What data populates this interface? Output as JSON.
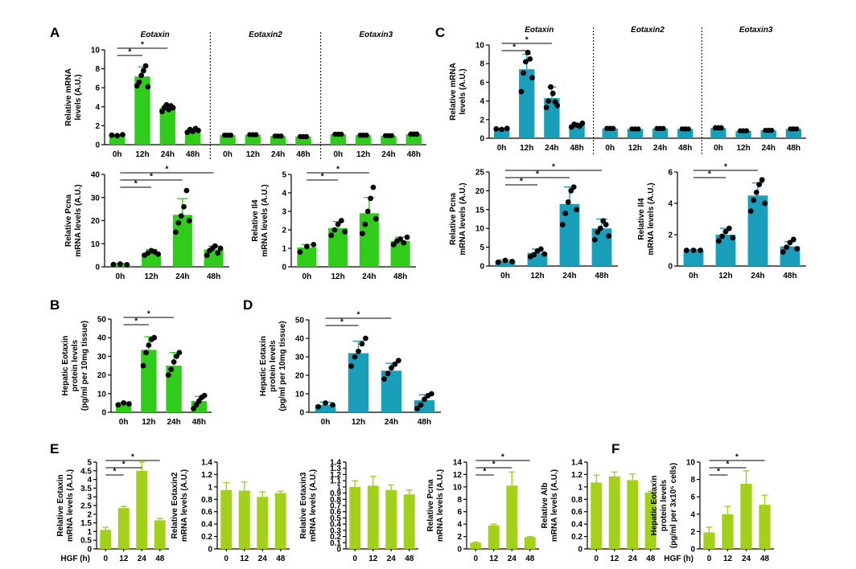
{
  "colors": {
    "green": "#2fcc1a",
    "teal": "#1a9fbb",
    "lime": "#a3d11a",
    "ink": "#000000"
  },
  "labels": {
    "A": "A",
    "B": "B",
    "C": "C",
    "D": "D",
    "E": "E",
    "F": "F"
  },
  "chart_data": [
    {
      "id": "A1",
      "panel": "A",
      "type": "bar",
      "color": "green",
      "ylabel": [
        "Relative mRNA",
        "levels (A.U.)"
      ],
      "ylim": [
        0,
        10
      ],
      "yticks": [
        0,
        2,
        4,
        6,
        8,
        10
      ],
      "groups": [
        {
          "title": "Eotaxin",
          "categories": [
            "0h",
            "12h",
            "24h",
            "48h"
          ],
          "values": [
            1.0,
            7.2,
            3.9,
            1.5
          ],
          "err": [
            0.05,
            1.0,
            0.3,
            0.2
          ]
        },
        {
          "title": "Eotaxin2",
          "categories": [
            "0h",
            "12h",
            "24h",
            "48h"
          ],
          "values": [
            1.0,
            1.05,
            0.9,
            0.85
          ],
          "err": [
            0.08,
            0.1,
            0.08,
            0.06
          ]
        },
        {
          "title": "Eotaxin3",
          "categories": [
            "0h",
            "12h",
            "24h",
            "48h"
          ],
          "values": [
            1.1,
            1.0,
            0.95,
            1.1
          ],
          "err": [
            0.2,
            0.15,
            0.1,
            0.25
          ]
        }
      ],
      "points": [
        [
          1,
          0.95,
          1.05
        ],
        [
          6.2,
          6.6,
          7.3,
          7.8,
          8.3,
          6.1
        ],
        [
          3.5,
          3.9,
          4.2,
          3.7,
          4.1,
          3.9
        ],
        [
          1.3,
          1.6,
          1.4,
          1.7,
          1.5
        ]
      ],
      "sig": [
        {
          "from": 0,
          "to": 1,
          "label": "*"
        },
        {
          "from": 0,
          "to": 2,
          "label": "*"
        }
      ]
    },
    {
      "id": "A2",
      "panel": "A",
      "type": "bar",
      "color": "green",
      "ylabel": [
        "Relative Pcna",
        "mRNA levels (A.U.)"
      ],
      "ylim": [
        0,
        40
      ],
      "yticks": [
        0,
        10,
        20,
        30,
        40
      ],
      "categories": [
        "0h",
        "12h",
        "24h",
        "48h"
      ],
      "values": [
        1.2,
        6.0,
        22.5,
        7.5
      ],
      "err": [
        0.3,
        1.5,
        7.0,
        1.5
      ],
      "points": [
        [
          1,
          1.2,
          0.9
        ],
        [
          5,
          6,
          7,
          6.5,
          5.5
        ],
        [
          15,
          19,
          22,
          26,
          33,
          20
        ],
        [
          5,
          7,
          8,
          9,
          6,
          8
        ]
      ],
      "sig": [
        {
          "from": 0,
          "to": 1,
          "label": "*"
        },
        {
          "from": 0,
          "to": 2,
          "label": "*"
        },
        {
          "from": 0,
          "to": 3,
          "label": "*"
        }
      ]
    },
    {
      "id": "A3",
      "panel": "A",
      "type": "bar",
      "color": "green",
      "ylabel": [
        "Relative Il4",
        "mRNA levels (A.U.)"
      ],
      "ylim": [
        0,
        5
      ],
      "yticks": [
        0,
        1,
        2,
        3,
        4,
        5
      ],
      "categories": [
        "0h",
        "12h",
        "24h",
        "48h"
      ],
      "values": [
        1.05,
        2.1,
        2.9,
        1.4
      ],
      "err": [
        0.15,
        0.35,
        0.85,
        0.2
      ],
      "points": [
        [
          0.8,
          1.1,
          1.2
        ],
        [
          1.7,
          2.0,
          2.3,
          2.5,
          1.9
        ],
        [
          1.8,
          2.3,
          3.0,
          3.7,
          4.3,
          2.6
        ],
        [
          1.2,
          1.4,
          1.5,
          1.3,
          1.6
        ]
      ],
      "sig": [
        {
          "from": 0,
          "to": 1,
          "label": "*"
        },
        {
          "from": 0,
          "to": 2,
          "label": "*"
        }
      ]
    },
    {
      "id": "B",
      "panel": "B",
      "type": "bar",
      "color": "green",
      "ylabel": [
        "Hepatic Eotaxin",
        "protein levels",
        "(pg/ml per 10mg tissue)"
      ],
      "ylim": [
        0,
        50
      ],
      "yticks": [
        0,
        10,
        20,
        30,
        40,
        50
      ],
      "categories": [
        "0h",
        "12h",
        "24h",
        "48h"
      ],
      "values": [
        4.5,
        33.5,
        25.0,
        6.0
      ],
      "err": [
        0.8,
        7.0,
        7.0,
        2.5
      ],
      "points": [
        [
          4,
          5,
          4.5
        ],
        [
          25,
          32,
          36,
          39,
          40
        ],
        [
          20,
          23,
          27,
          30,
          32
        ],
        [
          2,
          4,
          6,
          8,
          9
        ]
      ],
      "sig": [
        {
          "from": 0,
          "to": 1,
          "label": "*"
        },
        {
          "from": 0,
          "to": 2,
          "label": "*"
        }
      ]
    },
    {
      "id": "C1",
      "panel": "C",
      "type": "bar",
      "color": "teal",
      "ylabel": [
        "Relative mRNA",
        "levels (A.U.)"
      ],
      "ylim": [
        0,
        10
      ],
      "yticks": [
        0,
        2,
        4,
        6,
        8,
        10
      ],
      "groups": [
        {
          "title": "Eotaxin",
          "categories": [
            "0h",
            "12h",
            "24h",
            "48h"
          ],
          "values": [
            1.0,
            7.4,
            4.3,
            1.4
          ],
          "err": [
            0.05,
            1.6,
            1.2,
            0.2
          ]
        },
        {
          "title": "Eotaxin2",
          "categories": [
            "0h",
            "12h",
            "24h",
            "48h"
          ],
          "values": [
            1.05,
            1.0,
            1.05,
            1.0
          ],
          "err": [
            0.2,
            0.1,
            0.15,
            0.12
          ]
        },
        {
          "title": "Eotaxin3",
          "categories": [
            "0h",
            "12h",
            "24h",
            "48h"
          ],
          "values": [
            1.1,
            0.8,
            0.85,
            1.0
          ],
          "err": [
            0.25,
            0.1,
            0.12,
            0.1
          ]
        }
      ],
      "points": [
        [
          1,
          0.95,
          1.05
        ],
        [
          5.0,
          7.0,
          8.2,
          9.2,
          8.5,
          6.5
        ],
        [
          3.3,
          4.0,
          5.5,
          4.8,
          3.9,
          3.5
        ],
        [
          1.2,
          1.5,
          1.4,
          1.3,
          1.6
        ]
      ],
      "sig": [
        {
          "from": 0,
          "to": 1,
          "label": "*"
        },
        {
          "from": 0,
          "to": 2,
          "label": "*"
        }
      ]
    },
    {
      "id": "C2",
      "panel": "C",
      "type": "bar",
      "color": "teal",
      "ylabel": [
        "Relative Pcna",
        "mRNA levels (A.U.)"
      ],
      "ylim": [
        0,
        25
      ],
      "yticks": [
        0,
        5,
        10,
        15,
        20,
        25
      ],
      "categories": [
        "0h",
        "12h",
        "24h",
        "48h"
      ],
      "values": [
        1.3,
        3.5,
        16.5,
        10.0
      ],
      "err": [
        0.3,
        1.0,
        4.5,
        2.5
      ],
      "points": [
        [
          1,
          1.5,
          1.2
        ],
        [
          2.5,
          3,
          4,
          4.5,
          3.2
        ],
        [
          11,
          14,
          17,
          20,
          21,
          15
        ],
        [
          7,
          9,
          10,
          12,
          11,
          8
        ]
      ],
      "sig": [
        {
          "from": 0,
          "to": 1,
          "label": "*"
        },
        {
          "from": 0,
          "to": 2,
          "label": "*"
        },
        {
          "from": 0,
          "to": 3,
          "label": "*"
        }
      ]
    },
    {
      "id": "C3",
      "panel": "C",
      "type": "bar",
      "color": "teal",
      "ylabel": [
        "Relative Il4",
        "mRNA levels (A.U.)"
      ],
      "ylim": [
        0,
        6
      ],
      "yticks": [
        0,
        2,
        4,
        6
      ],
      "categories": [
        "0h",
        "12h",
        "24h",
        "48h"
      ],
      "values": [
        1.0,
        2.0,
        4.5,
        1.25
      ],
      "err": [
        0.05,
        0.4,
        0.8,
        0.3
      ],
      "points": [
        [
          1,
          1,
          1
        ],
        [
          1.6,
          1.9,
          2.2,
          2.4,
          1.8
        ],
        [
          3.5,
          4.2,
          4.7,
          5.2,
          5.5,
          4.0
        ],
        [
          0.9,
          1.2,
          1.5,
          1.7,
          1.1
        ]
      ],
      "sig": [
        {
          "from": 0,
          "to": 1,
          "label": "*"
        },
        {
          "from": 0,
          "to": 2,
          "label": "*"
        }
      ]
    },
    {
      "id": "D",
      "panel": "D",
      "type": "bar",
      "color": "teal",
      "ylabel": [
        "Hepatic Eotaxin",
        "protein levels",
        "(pg/ml per 10mg tissue)"
      ],
      "ylim": [
        0,
        50
      ],
      "yticks": [
        0,
        10,
        20,
        30,
        40,
        50
      ],
      "categories": [
        "0h",
        "12h",
        "24h",
        "48h"
      ],
      "values": [
        4.0,
        32.0,
        22.5,
        6.5
      ],
      "err": [
        1.5,
        6.5,
        4.0,
        3.0
      ],
      "points": [
        [
          3,
          5,
          4
        ],
        [
          25,
          30,
          33,
          37,
          40
        ],
        [
          18,
          21,
          24,
          26,
          28
        ],
        [
          2,
          4,
          7,
          9,
          10
        ]
      ],
      "sig": [
        {
          "from": 0,
          "to": 1,
          "label": "*"
        },
        {
          "from": 0,
          "to": 2,
          "label": "*"
        }
      ]
    },
    {
      "id": "E1",
      "panel": "E",
      "type": "bar",
      "color": "lime",
      "xlabel": "HGF (h)",
      "ylabel": [
        "Relative Eotaxin",
        "mRNA levels (A.U.)"
      ],
      "ylim": [
        0,
        5
      ],
      "yticks": [
        0,
        0.5,
        1,
        1.5,
        2,
        2.5,
        3,
        3.5,
        4,
        4.5,
        5
      ],
      "yticklabels": [
        "0",
        "0.5",
        "1",
        "1.5",
        "2",
        "2.5",
        "3",
        "3.5",
        "4",
        "4.5",
        "5"
      ],
      "categories": [
        "0",
        "12",
        "24",
        "48"
      ],
      "values": [
        1.1,
        2.35,
        4.5,
        1.65
      ],
      "err": [
        0.15,
        0.1,
        0.5,
        0.1
      ],
      "sig": [
        {
          "from": 0,
          "to": 1,
          "label": "*"
        },
        {
          "from": 0,
          "to": 2,
          "label": "*"
        },
        {
          "from": 0,
          "to": 3,
          "label": "*"
        }
      ]
    },
    {
      "id": "E2",
      "panel": "E",
      "type": "bar",
      "color": "lime",
      "xlabel": "",
      "ylabel": [
        "Relative Eotaxin2",
        "mRNA levels (A.U.)"
      ],
      "ylim": [
        0,
        1.4
      ],
      "yticks": [
        0,
        0.2,
        0.4,
        0.6,
        0.8,
        1,
        1.2,
        1.4
      ],
      "yticklabels": [
        "0",
        "0.2",
        "0.4",
        "0.6",
        "0.8",
        "1",
        "1.2",
        "1.4"
      ],
      "categories": [
        "0",
        "12",
        "24",
        "48"
      ],
      "values": [
        0.95,
        0.94,
        0.84,
        0.9
      ],
      "err": [
        0.12,
        0.14,
        0.08,
        0.03
      ],
      "sig": []
    },
    {
      "id": "E3",
      "panel": "E",
      "type": "bar",
      "color": "lime",
      "xlabel": "",
      "ylabel": [
        "Relative Eotaxin3",
        "mRNA levels (A.U.)"
      ],
      "ylim": [
        0,
        1.4
      ],
      "yticks": [
        0,
        0.1,
        0.2,
        0.3,
        0.4,
        0.5,
        0.6,
        0.7,
        0.8,
        0.9,
        1,
        1.1,
        1.2,
        1.3,
        1.4
      ],
      "yticklabels": [
        "0",
        "0.1",
        "0.2",
        "0.3",
        "0.4",
        "0.5",
        "0.6",
        "0.7",
        "0.8",
        "0.9",
        "1",
        "1.1",
        "1.2",
        "1.3",
        "1.4"
      ],
      "categories": [
        "0",
        "12",
        "24",
        "48"
      ],
      "values": [
        1.0,
        1.02,
        0.95,
        0.88
      ],
      "err": [
        0.1,
        0.15,
        0.08,
        0.07
      ],
      "sig": []
    },
    {
      "id": "E4",
      "panel": "E",
      "type": "bar",
      "color": "lime",
      "xlabel": "",
      "ylabel": [
        "Relative Pcna",
        "mRNA levels (A.U.)"
      ],
      "ylim": [
        0,
        14
      ],
      "yticks": [
        0,
        2,
        4,
        6,
        8,
        10,
        12,
        14
      ],
      "categories": [
        "0",
        "12",
        "24",
        "48"
      ],
      "values": [
        1.0,
        3.8,
        10.2,
        1.9
      ],
      "err": [
        0.1,
        0.2,
        2.2,
        0.1
      ],
      "sig": [
        {
          "from": 0,
          "to": 1,
          "label": "*"
        },
        {
          "from": 0,
          "to": 2,
          "label": "*"
        },
        {
          "from": 0,
          "to": 3,
          "label": "*"
        }
      ]
    },
    {
      "id": "E5",
      "panel": "E",
      "type": "bar",
      "color": "lime",
      "xlabel": "",
      "ylabel": [
        "Relative Alb",
        "mRNA levels (A.U.)"
      ],
      "ylim": [
        0,
        1.4
      ],
      "yticks": [
        0,
        0.2,
        0.4,
        0.6,
        0.8,
        1,
        1.2,
        1.4
      ],
      "yticklabels": [
        "0",
        "0.2",
        "0.4",
        "0.6",
        "0.8",
        "1",
        "1.2",
        "1.4"
      ],
      "categories": [
        "0",
        "12",
        "24",
        "48"
      ],
      "values": [
        1.07,
        1.17,
        1.11,
        0.91
      ],
      "err": [
        0.12,
        0.07,
        0.1,
        0.02
      ],
      "sig": []
    },
    {
      "id": "F",
      "panel": "F",
      "type": "bar",
      "color": "lime",
      "xlabel": "HGF (h)",
      "ylabel": [
        "Hepatic Eotaxin",
        "protein levels",
        "(pg/ml per 3x10⁵ cells)"
      ],
      "ylim": [
        0,
        10
      ],
      "yticks": [
        0,
        2,
        4,
        6,
        8,
        10
      ],
      "categories": [
        "0",
        "12",
        "24",
        "48"
      ],
      "values": [
        1.9,
        4.0,
        7.5,
        5.1
      ],
      "err": [
        0.6,
        0.9,
        1.5,
        1.1
      ],
      "sig": [
        {
          "from": 0,
          "to": 1,
          "label": "*"
        },
        {
          "from": 0,
          "to": 2,
          "label": "*"
        },
        {
          "from": 0,
          "to": 3,
          "label": "*"
        }
      ]
    }
  ]
}
